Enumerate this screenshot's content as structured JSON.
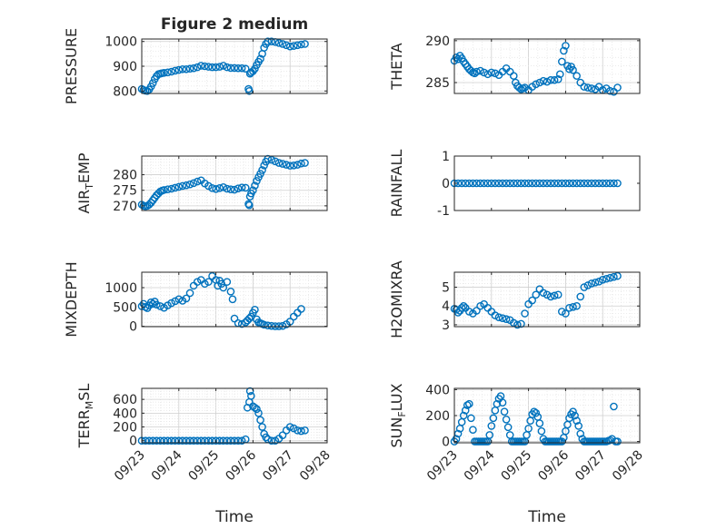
{
  "chart_data": [
    {
      "type": "scatter",
      "title": "Figure 2 medium",
      "ylabel": "PRESSURE",
      "xlabel": "",
      "xlim": [
        0,
        5
      ],
      "ylim": [
        790,
        1010
      ],
      "xticks": [
        0,
        1,
        2,
        3,
        4,
        5
      ],
      "xticklabels": [],
      "yticks": [
        800,
        900,
        1000
      ],
      "yticklabels": [
        "800",
        "900",
        "1000"
      ],
      "grid": true,
      "x": [
        0.0,
        0.05,
        0.1,
        0.15,
        0.2,
        0.25,
        0.3,
        0.35,
        0.4,
        0.45,
        0.5,
        0.55,
        0.6,
        0.7,
        0.8,
        0.9,
        1.0,
        1.1,
        1.2,
        1.3,
        1.4,
        1.5,
        1.6,
        1.7,
        1.8,
        1.9,
        2.0,
        2.1,
        2.2,
        2.3,
        2.4,
        2.5,
        2.6,
        2.7,
        2.8,
        2.88,
        2.9,
        2.92,
        2.95,
        3.0,
        3.05,
        3.1,
        3.15,
        3.2,
        3.25,
        3.3,
        3.35,
        3.4,
        3.5,
        3.6,
        3.7,
        3.8,
        3.9,
        4.0,
        4.1,
        4.2,
        4.3,
        4.4
      ],
      "y": [
        808,
        804,
        801,
        800,
        806,
        818,
        832,
        848,
        860,
        868,
        870,
        872,
        873,
        875,
        878,
        882,
        885,
        888,
        888,
        890,
        892,
        896,
        902,
        900,
        898,
        896,
        896,
        898,
        902,
        896,
        893,
        893,
        892,
        892,
        890,
        808,
        800,
        870,
        875,
        880,
        890,
        905,
        918,
        930,
        950,
        975,
        990,
        1000,
        1000,
        998,
        994,
        990,
        985,
        980,
        982,
        985,
        988,
        990
      ]
    },
    {
      "type": "scatter",
      "title": "",
      "ylabel": "THETA",
      "xlabel": "",
      "xlim": [
        0,
        5
      ],
      "ylim": [
        283.7,
        290.2
      ],
      "xticks": [
        0,
        1,
        2,
        3,
        4,
        5
      ],
      "xticklabels": [],
      "yticks": [
        285,
        290
      ],
      "yticklabels": [
        "285",
        "290"
      ],
      "grid": true,
      "x": [
        0.0,
        0.05,
        0.1,
        0.15,
        0.2,
        0.25,
        0.3,
        0.35,
        0.4,
        0.45,
        0.5,
        0.55,
        0.6,
        0.7,
        0.8,
        0.9,
        1.0,
        1.1,
        1.2,
        1.3,
        1.4,
        1.5,
        1.6,
        1.65,
        1.7,
        1.75,
        1.8,
        1.85,
        1.9,
        2.0,
        2.1,
        2.2,
        2.3,
        2.4,
        2.5,
        2.6,
        2.7,
        2.8,
        2.85,
        2.9,
        2.95,
        3.0,
        3.05,
        3.1,
        3.15,
        3.2,
        3.3,
        3.4,
        3.5,
        3.6,
        3.7,
        3.8,
        3.9,
        4.0,
        4.1,
        4.2,
        4.3,
        4.4
      ],
      "y": [
        287.6,
        288.0,
        287.8,
        288.2,
        287.9,
        287.5,
        287.2,
        286.9,
        286.6,
        286.4,
        286.2,
        286.1,
        286.3,
        286.4,
        286.2,
        286.0,
        286.2,
        286.1,
        285.9,
        286.3,
        286.7,
        286.3,
        285.8,
        285.0,
        284.6,
        284.4,
        284.2,
        284.3,
        284.4,
        284.1,
        284.5,
        284.8,
        285.0,
        285.2,
        285.1,
        285.3,
        285.3,
        285.4,
        286.0,
        287.5,
        288.8,
        289.4,
        287.0,
        286.6,
        286.9,
        286.5,
        285.8,
        285.0,
        284.5,
        284.4,
        284.3,
        284.2,
        284.5,
        284.1,
        284.3,
        284.0,
        283.9,
        284.4
      ]
    },
    {
      "type": "scatter",
      "title": "",
      "ylabel": "AIR_TEMP",
      "ylabel_main": "AIR",
      "ylabel_sub": "T",
      "ylabel_rest": "EMP",
      "xlabel": "",
      "xlim": [
        0,
        5
      ],
      "ylim": [
        268.5,
        286
      ],
      "xticks": [
        0,
        1,
        2,
        3,
        4,
        5
      ],
      "xticklabels": [],
      "yticks": [
        270,
        275,
        280
      ],
      "yticklabels": [
        "270",
        "275",
        "280"
      ],
      "grid": true,
      "x": [
        0.0,
        0.05,
        0.1,
        0.15,
        0.2,
        0.25,
        0.3,
        0.35,
        0.4,
        0.45,
        0.5,
        0.55,
        0.6,
        0.7,
        0.8,
        0.9,
        1.0,
        1.1,
        1.2,
        1.3,
        1.4,
        1.5,
        1.6,
        1.7,
        1.8,
        1.9,
        2.0,
        2.1,
        2.2,
        2.3,
        2.4,
        2.5,
        2.6,
        2.7,
        2.8,
        2.88,
        2.9,
        2.92,
        2.95,
        3.0,
        3.05,
        3.1,
        3.15,
        3.2,
        3.25,
        3.3,
        3.35,
        3.4,
        3.5,
        3.6,
        3.7,
        3.8,
        3.9,
        4.0,
        4.1,
        4.2,
        4.3,
        4.4
      ],
      "y": [
        270.4,
        270.0,
        269.9,
        270.0,
        270.4,
        271.0,
        271.8,
        272.6,
        273.4,
        274.0,
        274.6,
        274.9,
        275.1,
        275.3,
        275.5,
        275.8,
        276.1,
        276.4,
        276.6,
        276.9,
        277.3,
        277.8,
        278.2,
        277.2,
        276.4,
        275.7,
        275.4,
        275.7,
        276.0,
        275.5,
        275.3,
        275.2,
        275.6,
        275.9,
        275.8,
        270.6,
        270.2,
        273.0,
        274.0,
        275.0,
        276.5,
        278.0,
        279.2,
        280.3,
        281.5,
        283.0,
        284.2,
        285.1,
        284.8,
        284.3,
        283.8,
        283.5,
        283.2,
        282.9,
        283.0,
        283.2,
        283.6,
        283.8
      ]
    },
    {
      "type": "scatter",
      "title": "",
      "ylabel": "RAINFALL",
      "xlabel": "",
      "xlim": [
        0,
        5
      ],
      "ylim": [
        -1,
        1
      ],
      "xticks": [
        0,
        1,
        2,
        3,
        4,
        5
      ],
      "xticklabels": [],
      "yticks": [
        -1,
        0,
        1
      ],
      "yticklabels": [
        "-1",
        "0",
        "1"
      ],
      "grid": false,
      "x": [
        0.0,
        0.1,
        0.2,
        0.3,
        0.4,
        0.5,
        0.6,
        0.7,
        0.8,
        0.9,
        1.0,
        1.1,
        1.2,
        1.3,
        1.4,
        1.5,
        1.6,
        1.7,
        1.8,
        1.9,
        2.0,
        2.1,
        2.2,
        2.3,
        2.4,
        2.5,
        2.6,
        2.7,
        2.8,
        2.9,
        3.0,
        3.1,
        3.2,
        3.3,
        3.4,
        3.5,
        3.6,
        3.7,
        3.8,
        3.9,
        4.0,
        4.1,
        4.2,
        4.3,
        4.4
      ],
      "y": [
        0,
        0,
        0,
        0,
        0,
        0,
        0,
        0,
        0,
        0,
        0,
        0,
        0,
        0,
        0,
        0,
        0,
        0,
        0,
        0,
        0,
        0,
        0,
        0,
        0,
        0,
        0,
        0,
        0,
        0,
        0,
        0,
        0,
        0,
        0,
        0,
        0,
        0,
        0,
        0,
        0,
        0,
        0,
        0,
        0
      ]
    },
    {
      "type": "scatter",
      "title": "",
      "ylabel": "MIXDEPTH",
      "xlabel": "",
      "xlim": [
        0,
        5
      ],
      "ylim": [
        -10,
        1400
      ],
      "xticks": [
        0,
        1,
        2,
        3,
        4,
        5
      ],
      "xticklabels": [],
      "yticks": [
        0,
        500,
        1000
      ],
      "yticklabels": [
        "0",
        "500",
        "1000"
      ],
      "grid": true,
      "x": [
        0.0,
        0.05,
        0.1,
        0.15,
        0.2,
        0.25,
        0.3,
        0.35,
        0.4,
        0.5,
        0.6,
        0.7,
        0.8,
        0.9,
        1.0,
        1.1,
        1.2,
        1.3,
        1.4,
        1.5,
        1.6,
        1.7,
        1.8,
        1.9,
        2.0,
        2.05,
        2.1,
        2.15,
        2.2,
        2.3,
        2.4,
        2.45,
        2.5,
        2.6,
        2.7,
        2.8,
        2.85,
        2.9,
        2.95,
        3.0,
        3.05,
        3.1,
        3.15,
        3.2,
        3.25,
        3.3,
        3.4,
        3.5,
        3.6,
        3.7,
        3.8,
        3.9,
        4.0,
        4.1,
        4.2,
        4.3
      ],
      "y": [
        520,
        580,
        500,
        470,
        540,
        620,
        580,
        640,
        560,
        520,
        480,
        540,
        600,
        650,
        700,
        660,
        720,
        860,
        1050,
        1150,
        1200,
        1100,
        1150,
        1300,
        1200,
        1050,
        1180,
        1100,
        1000,
        1150,
        900,
        700,
        200,
        80,
        60,
        100,
        150,
        200,
        250,
        350,
        430,
        180,
        100,
        80,
        60,
        40,
        20,
        10,
        0,
        0,
        10,
        50,
        120,
        250,
        350,
        450
      ]
    },
    {
      "type": "scatter",
      "title": "",
      "ylabel": "H2OMIXRA",
      "xlabel": "",
      "xlim": [
        0,
        5
      ],
      "ylim": [
        2.9,
        5.8
      ],
      "xticks": [
        0,
        1,
        2,
        3,
        4,
        5
      ],
      "xticklabels": [],
      "yticks": [
        3,
        4,
        5
      ],
      "yticklabels": [
        "3",
        "4",
        "5"
      ],
      "grid": true,
      "x": [
        0.0,
        0.05,
        0.1,
        0.15,
        0.2,
        0.25,
        0.3,
        0.4,
        0.5,
        0.6,
        0.7,
        0.8,
        0.9,
        1.0,
        1.1,
        1.2,
        1.3,
        1.4,
        1.5,
        1.6,
        1.7,
        1.8,
        1.9,
        2.0,
        2.1,
        2.2,
        2.3,
        2.4,
        2.5,
        2.6,
        2.7,
        2.8,
        2.9,
        3.0,
        3.1,
        3.2,
        3.3,
        3.4,
        3.5,
        3.6,
        3.7,
        3.8,
        3.9,
        4.0,
        4.1,
        4.2,
        4.3,
        4.4
      ],
      "y": [
        3.85,
        3.8,
        3.65,
        3.75,
        3.9,
        4.0,
        3.9,
        3.7,
        3.6,
        3.75,
        4.0,
        4.1,
        3.9,
        3.7,
        3.5,
        3.4,
        3.35,
        3.3,
        3.25,
        3.1,
        3.0,
        3.05,
        3.6,
        4.1,
        4.3,
        4.6,
        4.9,
        4.7,
        4.6,
        4.5,
        4.55,
        4.6,
        3.7,
        3.6,
        3.9,
        3.95,
        4.0,
        4.5,
        5.0,
        5.1,
        5.2,
        5.25,
        5.3,
        5.4,
        5.45,
        5.5,
        5.55,
        5.6
      ]
    },
    {
      "type": "scatter",
      "title": "",
      "ylabel": "TERR_MSL",
      "ylabel_main": "TERR",
      "ylabel_sub": "M",
      "ylabel_rest": "SL",
      "xlabel": "Time",
      "xlim": [
        0,
        5
      ],
      "ylim": [
        -30,
        760
      ],
      "xticks": [
        0,
        1,
        2,
        3,
        4,
        5
      ],
      "xticklabels": [
        "09/23",
        "09/24",
        "09/25",
        "09/26",
        "09/27",
        "09/28"
      ],
      "yticks": [
        0,
        200,
        400,
        600
      ],
      "yticklabels": [
        "0",
        "200",
        "400",
        "600"
      ],
      "grid": true,
      "x": [
        0.0,
        0.1,
        0.2,
        0.3,
        0.4,
        0.5,
        0.6,
        0.7,
        0.8,
        0.9,
        1.0,
        1.1,
        1.2,
        1.3,
        1.4,
        1.5,
        1.6,
        1.7,
        1.8,
        1.9,
        2.0,
        2.1,
        2.2,
        2.3,
        2.4,
        2.5,
        2.6,
        2.7,
        2.8,
        2.85,
        2.9,
        2.92,
        2.95,
        3.0,
        3.05,
        3.1,
        3.15,
        3.2,
        3.25,
        3.3,
        3.35,
        3.4,
        3.5,
        3.6,
        3.7,
        3.8,
        3.9,
        4.0,
        4.1,
        4.2,
        4.3,
        4.4
      ],
      "y": [
        0,
        0,
        0,
        0,
        0,
        0,
        0,
        0,
        0,
        0,
        0,
        0,
        0,
        0,
        0,
        0,
        0,
        0,
        0,
        0,
        0,
        0,
        0,
        0,
        0,
        0,
        0,
        0,
        20,
        480,
        560,
        720,
        650,
        500,
        480,
        460,
        400,
        300,
        200,
        100,
        50,
        20,
        0,
        0,
        30,
        80,
        150,
        200,
        180,
        150,
        140,
        150
      ]
    },
    {
      "type": "scatter",
      "title": "",
      "ylabel": "SUN_FLUX",
      "ylabel_main": "SUN",
      "ylabel_sub": "F",
      "ylabel_rest": "LUX",
      "xlabel": "Time",
      "xlim": [
        0,
        5
      ],
      "ylim": [
        -10,
        410
      ],
      "xticks": [
        0,
        1,
        2,
        3,
        4,
        5
      ],
      "xticklabels": [
        "09/23",
        "09/24",
        "09/25",
        "09/26",
        "09/27",
        "09/28"
      ],
      "yticks": [
        0,
        200,
        400
      ],
      "yticklabels": [
        "0",
        "200",
        "400"
      ],
      "grid": true,
      "x": [
        0.0,
        0.05,
        0.1,
        0.15,
        0.2,
        0.25,
        0.3,
        0.35,
        0.4,
        0.45,
        0.5,
        0.55,
        0.6,
        0.65,
        0.7,
        0.75,
        0.8,
        0.85,
        0.9,
        0.95,
        1.0,
        1.05,
        1.1,
        1.15,
        1.2,
        1.25,
        1.3,
        1.35,
        1.4,
        1.45,
        1.5,
        1.55,
        1.6,
        1.65,
        1.7,
        1.75,
        1.8,
        1.85,
        1.9,
        1.95,
        2.0,
        2.05,
        2.1,
        2.15,
        2.2,
        2.25,
        2.3,
        2.35,
        2.4,
        2.45,
        2.5,
        2.55,
        2.6,
        2.65,
        2.7,
        2.75,
        2.8,
        2.85,
        2.9,
        2.95,
        3.0,
        3.05,
        3.1,
        3.15,
        3.2,
        3.25,
        3.3,
        3.35,
        3.4,
        3.45,
        3.5,
        3.55,
        3.6,
        3.65,
        3.7,
        3.75,
        3.8,
        3.85,
        3.9,
        3.95,
        4.0,
        4.05,
        4.1,
        4.15,
        4.2,
        4.25,
        4.3,
        4.35,
        4.4
      ],
      "y": [
        0,
        20,
        60,
        100,
        150,
        200,
        240,
        280,
        290,
        180,
        90,
        0,
        0,
        0,
        0,
        0,
        0,
        0,
        0,
        50,
        120,
        180,
        240,
        290,
        330,
        350,
        300,
        230,
        170,
        110,
        50,
        0,
        0,
        0,
        0,
        0,
        0,
        0,
        0,
        50,
        100,
        160,
        210,
        230,
        220,
        190,
        140,
        80,
        20,
        0,
        0,
        0,
        0,
        0,
        0,
        0,
        0,
        0,
        0,
        30,
        80,
        130,
        180,
        210,
        230,
        200,
        160,
        120,
        60,
        20,
        0,
        0,
        0,
        0,
        0,
        0,
        0,
        0,
        0,
        0,
        0,
        0,
        0,
        5,
        10,
        20,
        270,
        0,
        0
      ]
    }
  ],
  "colors": {
    "marker": "#0072bd",
    "axis": "#262626",
    "grid": "#d9d9d9",
    "background": "#ffffff"
  }
}
